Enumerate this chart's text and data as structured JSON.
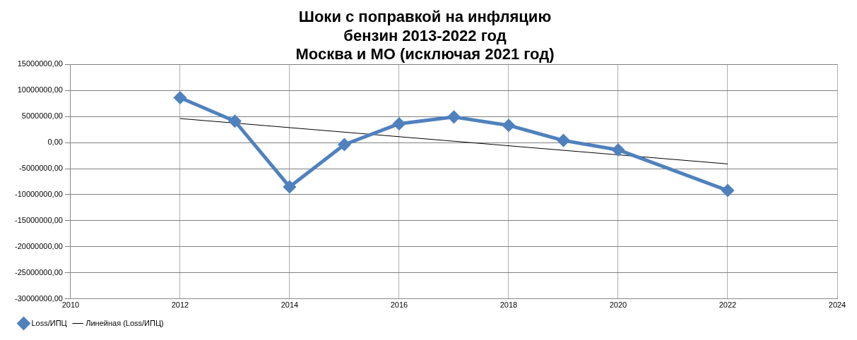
{
  "chart_data": {
    "type": "line",
    "title": "Шоки с поправкой на инфляцию\nбензин 2013-2022 год\nМосква и МО (исключая 2021 год)",
    "series": [
      {
        "name": "Loss/ИПЦ",
        "color": "#4f81bd",
        "x": [
          2012,
          2013,
          2014,
          2015,
          2016,
          2017,
          2018,
          2019,
          2020,
          2022
        ],
        "values": [
          8600000,
          4100000,
          -8500000,
          -400000,
          3600000,
          4900000,
          3300000,
          400000,
          -1400000,
          -9200000
        ],
        "marker": "diamond"
      },
      {
        "name": "Линейная (Loss/ИПЦ)",
        "color": "#000000",
        "x": [
          2012,
          2022
        ],
        "values": [
          4600000,
          -4100000
        ],
        "marker": "none"
      }
    ],
    "xlim": [
      2010,
      2024
    ],
    "xticks": [
      2010,
      2012,
      2014,
      2016,
      2018,
      2020,
      2022,
      2024
    ],
    "ylim": [
      -30000000,
      15000000
    ],
    "yticks": [
      {
        "value": -30000000,
        "label": "-30000000,00"
      },
      {
        "value": -25000000,
        "label": "-25000000,00"
      },
      {
        "value": -20000000,
        "label": "-20000000,00"
      },
      {
        "value": -15000000,
        "label": "-15000000,00"
      },
      {
        "value": -10000000,
        "label": "-10000000,00"
      },
      {
        "value": -5000000,
        "label": "-5000000,00"
      },
      {
        "value": 0,
        "label": "0,00"
      },
      {
        "value": 5000000,
        "label": "5000000,00"
      },
      {
        "value": 10000000,
        "label": "10000000,00"
      },
      {
        "value": 15000000,
        "label": "15000000,00"
      }
    ],
    "grid": true,
    "legend": "bottom left"
  }
}
